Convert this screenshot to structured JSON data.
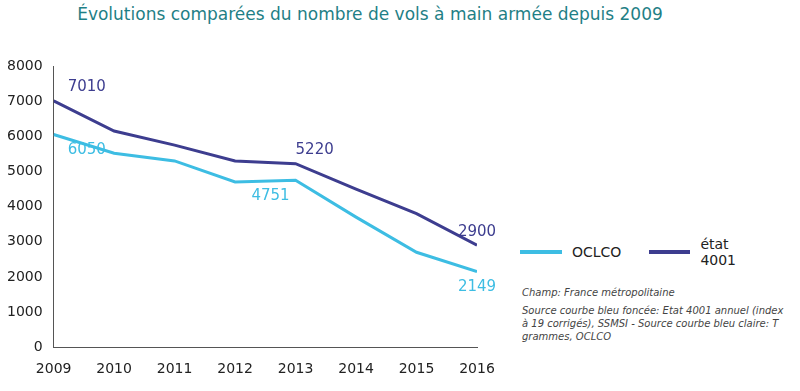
{
  "chart_data": {
    "type": "line",
    "title": "Évolutions comparées du nombre de vols à main armée depuis 2009",
    "categories": [
      "2009",
      "2010",
      "2011",
      "2012",
      "2013",
      "2014",
      "2015",
      "2016"
    ],
    "series": [
      {
        "name": "OCLCO",
        "color": "#3dbde3",
        "marker": "none",
        "values": [
          6050,
          5520,
          5300,
          4700,
          4751,
          3700,
          2700,
          2149
        ],
        "value_labels": [
          "6050",
          null,
          null,
          null,
          "4751",
          null,
          null,
          "2149"
        ]
      },
      {
        "name": "état 4001",
        "color": "#3d3d8f",
        "marker": "none",
        "values": [
          7010,
          6150,
          5750,
          5300,
          5220,
          4500,
          3800,
          2900
        ],
        "value_labels": [
          "7010",
          null,
          null,
          null,
          "5220",
          null,
          null,
          "2900"
        ]
      }
    ],
    "ylim": [
      0,
      8000
    ],
    "yticks": [
      0,
      1000,
      2000,
      3000,
      4000,
      5000,
      6000,
      7000,
      8000
    ],
    "grid": false,
    "legend": "right",
    "data_labels": true,
    "annotations": [
      "Champ: France métropolitaine",
      "Source courbe bleu foncée: Etat 4001 annuel (index à 19 corrigés), SSMSI - Source courbe bleu claire: T grammes, OCLCO"
    ]
  }
}
